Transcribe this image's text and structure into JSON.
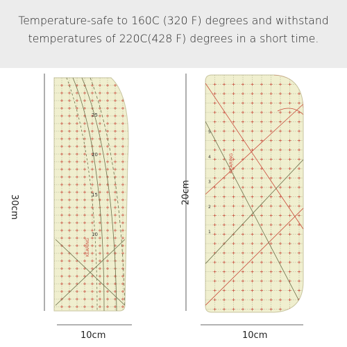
{
  "banner": {
    "text": "Temperature-safe to 160C (320 F) degrees and withstand temperatures of 220C(428 F) degrees in a short time."
  },
  "left_ruler": {
    "height_label": "30cm",
    "width_label": "10cm",
    "scale_numbers": [
      "25",
      "20",
      "15",
      "10"
    ],
    "brand": "KEARING"
  },
  "right_ruler": {
    "height_label": "20cm",
    "width_label": "10cm",
    "brand": "KEARING",
    "scale_numbers": [
      "5",
      "4",
      "3",
      "2",
      "1"
    ]
  },
  "colors": {
    "ruler_fill": "#f0efcf",
    "grid": "#8a8f6a",
    "red_marks": "#c94a3a",
    "banner_bg": "#ececec"
  }
}
